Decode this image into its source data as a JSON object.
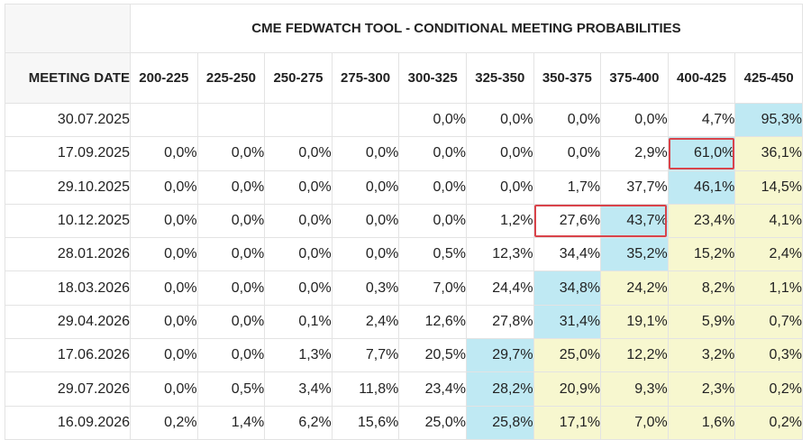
{
  "title": "CME FEDWATCH TOOL - CONDITIONAL MEETING PROBABILITIES",
  "date_header": "MEETING DATE",
  "chart_data": {
    "type": "table",
    "title": "CME FEDWATCH TOOL - CONDITIONAL MEETING PROBABILITIES",
    "columns": [
      "200-225",
      "225-250",
      "250-275",
      "275-300",
      "300-325",
      "325-350",
      "350-375",
      "375-400",
      "400-425",
      "425-450"
    ],
    "rows": [
      {
        "date": "30.07.2025",
        "values": [
          "",
          "",
          "",
          "",
          "0,0%",
          "0,0%",
          "0,0%",
          "0,0%",
          "4,7%",
          "95,3%"
        ],
        "shade": [
          "w",
          "w",
          "w",
          "w",
          "w",
          "w",
          "w",
          "w",
          "w",
          "b"
        ]
      },
      {
        "date": "17.09.2025",
        "values": [
          "0,0%",
          "0,0%",
          "0,0%",
          "0,0%",
          "0,0%",
          "0,0%",
          "0,0%",
          "2,9%",
          "61,0%",
          "36,1%"
        ],
        "shade": [
          "w",
          "w",
          "w",
          "w",
          "w",
          "w",
          "w",
          "w",
          "b",
          "y"
        ]
      },
      {
        "date": "29.10.2025",
        "values": [
          "0,0%",
          "0,0%",
          "0,0%",
          "0,0%",
          "0,0%",
          "0,0%",
          "1,7%",
          "37,7%",
          "46,1%",
          "14,5%"
        ],
        "shade": [
          "w",
          "w",
          "w",
          "w",
          "w",
          "w",
          "w",
          "w",
          "b",
          "y"
        ]
      },
      {
        "date": "10.12.2025",
        "values": [
          "0,0%",
          "0,0%",
          "0,0%",
          "0,0%",
          "0,0%",
          "1,2%",
          "27,6%",
          "43,7%",
          "23,4%",
          "4,1%"
        ],
        "shade": [
          "w",
          "w",
          "w",
          "w",
          "w",
          "w",
          "w",
          "b",
          "y",
          "y"
        ]
      },
      {
        "date": "28.01.2026",
        "values": [
          "0,0%",
          "0,0%",
          "0,0%",
          "0,0%",
          "0,5%",
          "12,3%",
          "34,4%",
          "35,2%",
          "15,2%",
          "2,4%"
        ],
        "shade": [
          "w",
          "w",
          "w",
          "w",
          "w",
          "w",
          "w",
          "b",
          "y",
          "y"
        ]
      },
      {
        "date": "18.03.2026",
        "values": [
          "0,0%",
          "0,0%",
          "0,0%",
          "0,3%",
          "7,0%",
          "24,4%",
          "34,8%",
          "24,2%",
          "8,2%",
          "1,1%"
        ],
        "shade": [
          "w",
          "w",
          "w",
          "w",
          "w",
          "w",
          "b",
          "y",
          "y",
          "y"
        ]
      },
      {
        "date": "29.04.2026",
        "values": [
          "0,0%",
          "0,0%",
          "0,1%",
          "2,4%",
          "12,6%",
          "27,8%",
          "31,4%",
          "19,1%",
          "5,9%",
          "0,7%"
        ],
        "shade": [
          "w",
          "w",
          "w",
          "w",
          "w",
          "w",
          "b",
          "y",
          "y",
          "y"
        ]
      },
      {
        "date": "17.06.2026",
        "values": [
          "0,0%",
          "0,0%",
          "1,3%",
          "7,7%",
          "20,5%",
          "29,7%",
          "25,0%",
          "12,2%",
          "3,2%",
          "0,3%"
        ],
        "shade": [
          "w",
          "w",
          "w",
          "w",
          "w",
          "b",
          "y",
          "y",
          "y",
          "y"
        ]
      },
      {
        "date": "29.07.2026",
        "values": [
          "0,0%",
          "0,5%",
          "3,4%",
          "11,8%",
          "23,4%",
          "28,2%",
          "20,9%",
          "9,3%",
          "2,3%",
          "0,2%"
        ],
        "shade": [
          "w",
          "w",
          "w",
          "w",
          "w",
          "b",
          "y",
          "y",
          "y",
          "y"
        ]
      },
      {
        "date": "16.09.2026",
        "values": [
          "0,2%",
          "1,4%",
          "6,2%",
          "15,6%",
          "25,0%",
          "25,8%",
          "17,1%",
          "7,0%",
          "1,6%",
          "0,2%"
        ],
        "shade": [
          "w",
          "w",
          "w",
          "w",
          "w",
          "b",
          "y",
          "y",
          "y",
          "y"
        ]
      }
    ],
    "highlights": [
      {
        "row": 1,
        "col_start": 8,
        "col_end": 8
      },
      {
        "row": 3,
        "col_start": 6,
        "col_end": 7
      }
    ],
    "colors": {
      "blue": "#bfe9f3",
      "yellow": "#f7f7cf",
      "highlight": "#d9434a"
    }
  }
}
